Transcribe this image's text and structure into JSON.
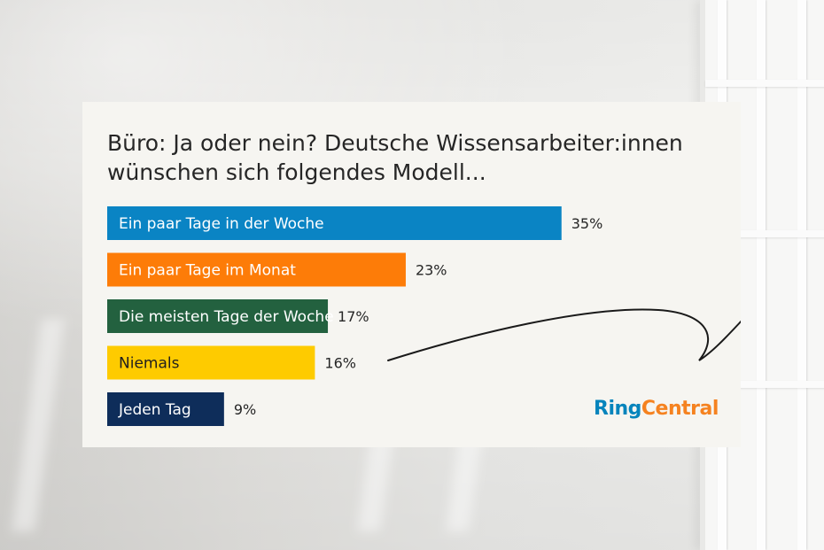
{
  "title_lines": [
    "Büro: Ja oder nein? Deutsche Wissensarbeiter:innen",
    "wünschen sich folgendes Modell..."
  ],
  "logo": {
    "part1": "Ring",
    "part2": "Central"
  },
  "colors": {
    "card_background": "#f6f5f1",
    "logo_ring": "#0684bc",
    "logo_central": "#f58220",
    "text": "#262626"
  },
  "chart_data": {
    "type": "bar",
    "orientation": "horizontal",
    "categories": [
      "Ein paar Tage in der Woche",
      "Ein paar Tage im Monat",
      "Die meisten Tage der Woche",
      "Niemals",
      "Jeden Tag"
    ],
    "values": [
      35,
      23,
      17,
      16,
      9
    ],
    "value_labels": [
      "35%",
      "23%",
      "17%",
      "16%",
      "9%"
    ],
    "bar_colors": [
      "#0a84c4",
      "#fd7c08",
      "#23613f",
      "#fecb00",
      "#0e2d5a"
    ],
    "label_colors": [
      "#ffffff",
      "#ffffff",
      "#ffffff",
      "#1f1f1f",
      "#ffffff"
    ],
    "xlabel": "",
    "ylabel": "",
    "grid": false,
    "legend": "none"
  }
}
